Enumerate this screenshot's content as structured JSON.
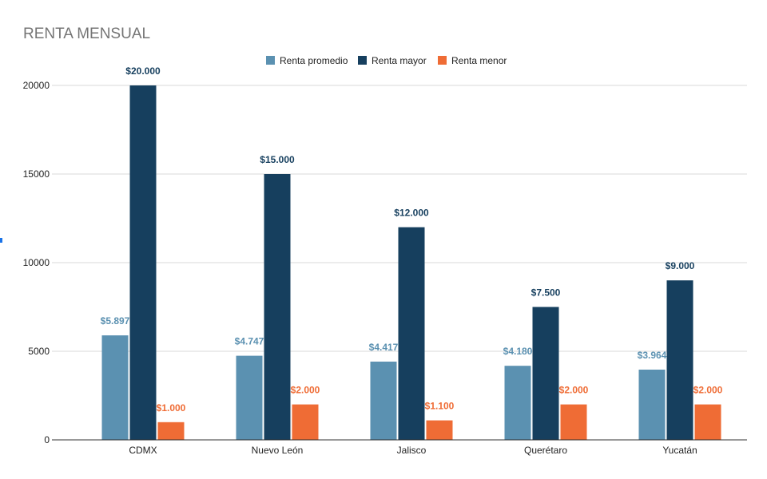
{
  "colors": {
    "renta_promedio": "#5b91b1",
    "renta_mayor": "#163f5e",
    "renta_menor": "#ef6c35",
    "edge_mark": "#1a73e8"
  },
  "chart_data": {
    "type": "bar",
    "title": "RENTA MENSUAL",
    "categories": [
      "CDMX",
      "Nuevo León",
      "Jalisco",
      "Querétaro",
      "Yucatán"
    ],
    "series": [
      {
        "name": "Renta promedio",
        "values": [
          5897,
          4747,
          4417,
          4180,
          3964
        ],
        "labels": [
          "$5.897",
          "$4.747",
          "$4.417",
          "$4.180",
          "$3.964"
        ]
      },
      {
        "name": "Renta mayor",
        "values": [
          20000,
          15000,
          12000,
          7500,
          9000
        ],
        "labels": [
          "$20.000",
          "$15.000",
          "$12.000",
          "$7.500",
          "$9.000"
        ]
      },
      {
        "name": "Renta menor",
        "values": [
          1000,
          2000,
          1100,
          2000,
          2000
        ],
        "labels": [
          "$1.000",
          "$2.000",
          "$1.100",
          "$2.000",
          "$2.000"
        ]
      }
    ],
    "yticks": [
      0,
      5000,
      10000,
      15000,
      20000
    ],
    "ylim": [
      0,
      20000
    ],
    "grid": true,
    "legend": "top-center"
  }
}
